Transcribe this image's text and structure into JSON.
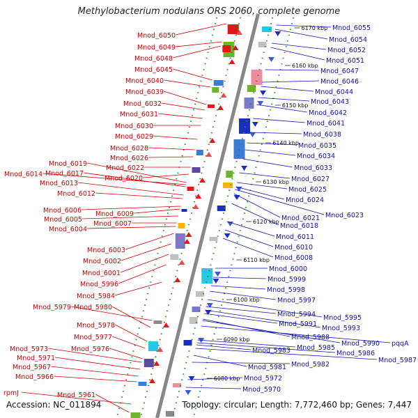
{
  "title": "Methylobacterium nodulans ORS 2060, complete genome",
  "accession": "Accession: NC_011894",
  "summary": "Topology: circular; Length: 7,772,460 bp; Genes: 7,447",
  "colors": {
    "forward_label": "#cc0000",
    "reverse_label": "#1010aa",
    "backbone": "#888888",
    "tick": "#2e8b2e"
  },
  "kbp_marks": [
    "6170 kbp",
    "6160 kbp",
    "6150 kbp",
    "6140 kbp",
    "6130 kbp",
    "6120 kbp",
    "6110 kbp",
    "6100 kbp",
    "6090 kbp",
    "6080 kbp"
  ],
  "left_labels": [
    "Mnod_6050",
    "Mnod_6049",
    "Mnod_6048",
    "Mnod_6045",
    "Mnod_6040",
    "Mnod_6039",
    "Mnod_6032",
    "Mnod_6031",
    "Mnod_6030",
    "Mnod_6029",
    "Mnod_6028",
    "Mnod_6026",
    "Mnod_6022",
    "Mnod_6020",
    "Mnod_6019",
    "Mnod_6014",
    "Mnod_6017",
    "Mnod_6013",
    "Mnod_6012",
    "Mnod_6006",
    "Mnod_6009",
    "Mnod_6005",
    "Mnod_6007",
    "Mnod_6004",
    "Mnod_6003",
    "Mnod_6002",
    "Mnod_6001",
    "Mnod_5996",
    "Mnod_5984",
    "Mnod_5979",
    "Mnod_5980",
    "Mnod_5978",
    "Mnod_5977",
    "Mnod_5976",
    "Mnod_5973",
    "Mnod_5971",
    "Mnod_5967",
    "Mnod_5966",
    "rpmJ",
    "Mnod_5961"
  ],
  "right_labels": [
    "Mnod_6055",
    "Mnod_6054",
    "Mnod_6052",
    "Mnod_6051",
    "Mnod_6047",
    "Mnod_6046",
    "Mnod_6044",
    "Mnod_6043",
    "Mnod_6042",
    "Mnod_6041",
    "Mnod_6038",
    "Mnod_6035",
    "Mnod_6034",
    "Mnod_6033",
    "Mnod_6027",
    "Mnod_6025",
    "Mnod_6024",
    "Mnod_6023",
    "Mnod_6021",
    "Mnod_6018",
    "Mnod_6011",
    "Mnod_6010",
    "Mnod_6008",
    "Mnod_6000",
    "Mnod_5999",
    "Mnod_5998",
    "Mnod_5997",
    "Mnod_5995",
    "Mnod_5994",
    "Mnod_5993",
    "Mnod_5991",
    "Mnod_5988",
    "Mnod_5990",
    "pqqA",
    "Mnod_5985",
    "Mnod_5986",
    "Mnod_5983",
    "Mnod_5987",
    "Mnod_5981",
    "Mnod_5982",
    "Mnod_5972",
    "Mnod_5970"
  ]
}
